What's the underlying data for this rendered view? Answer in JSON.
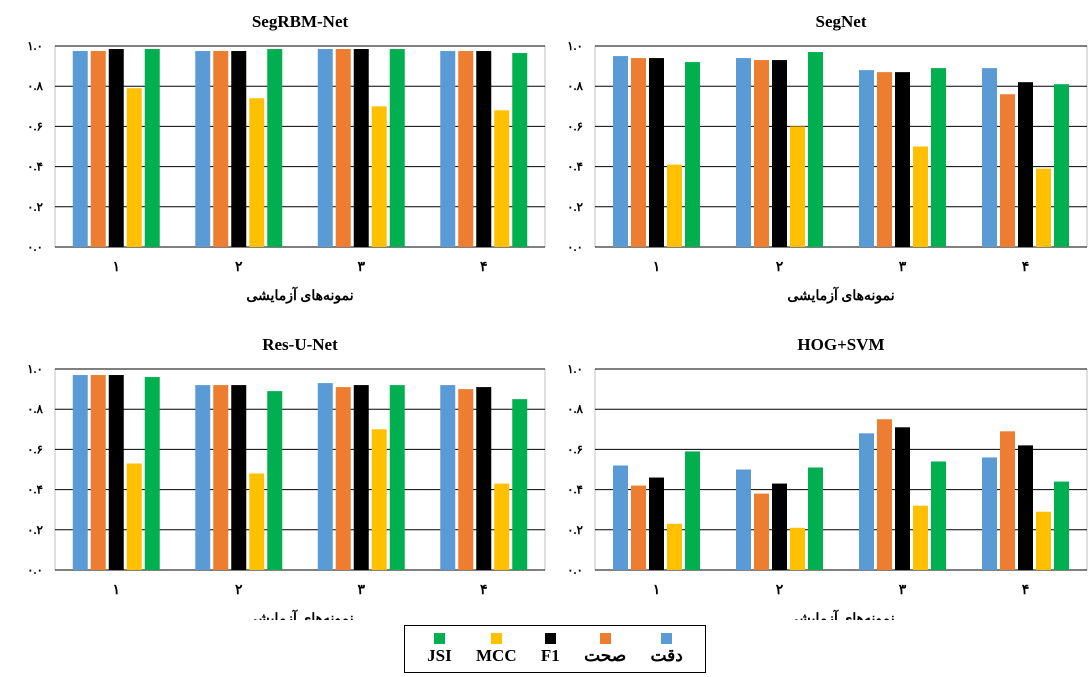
{
  "chart_data": [
    {
      "type": "bar",
      "title": "SegRBM-Net",
      "categories": [
        "۱",
        "۲",
        "۳",
        "۴"
      ],
      "ylim": [
        0,
        1.0
      ],
      "yticks": [
        "۰.۰",
        "۰.۲",
        "۰.۴",
        "۰.۶",
        "۰.۸",
        "۱.۰"
      ],
      "xlabel": "نمونه‌های آزمایشی",
      "series": [
        {
          "name": "دقت",
          "values": [
            0.975,
            0.975,
            0.985,
            0.975
          ]
        },
        {
          "name": "صحت",
          "values": [
            0.975,
            0.975,
            0.985,
            0.975
          ]
        },
        {
          "name": "F1",
          "values": [
            0.985,
            0.975,
            0.985,
            0.975
          ]
        },
        {
          "name": "MCC",
          "values": [
            0.79,
            0.74,
            0.7,
            0.68
          ]
        },
        {
          "name": "JSI",
          "values": [
            0.985,
            0.985,
            0.985,
            0.965
          ]
        }
      ]
    },
    {
      "type": "bar",
      "title": "SegNet",
      "categories": [
        "۱",
        "۲",
        "۳",
        "۴"
      ],
      "ylim": [
        0,
        1.0
      ],
      "yticks": [
        "۰.۰",
        "۰.۲",
        "۰.۴",
        "۰.۶",
        "۰.۸",
        "۱.۰"
      ],
      "xlabel": "نمونه‌های آزمایشی",
      "series": [
        {
          "name": "دقت",
          "values": [
            0.95,
            0.94,
            0.88,
            0.89
          ]
        },
        {
          "name": "صحت",
          "values": [
            0.94,
            0.93,
            0.87,
            0.76
          ]
        },
        {
          "name": "F1",
          "values": [
            0.94,
            0.93,
            0.87,
            0.82
          ]
        },
        {
          "name": "MCC",
          "values": [
            0.41,
            0.6,
            0.5,
            0.39
          ]
        },
        {
          "name": "JSI",
          "values": [
            0.92,
            0.97,
            0.89,
            0.81
          ]
        }
      ]
    },
    {
      "type": "bar",
      "title": "Res-U-Net",
      "categories": [
        "۱",
        "۲",
        "۳",
        "۴"
      ],
      "ylim": [
        0,
        1.0
      ],
      "yticks": [
        "۰.۰",
        "۰.۲",
        "۰.۴",
        "۰.۶",
        "۰.۸",
        "۱.۰"
      ],
      "xlabel": "نمونه‌های آزمایشی",
      "series": [
        {
          "name": "دقت",
          "values": [
            0.97,
            0.92,
            0.93,
            0.92
          ]
        },
        {
          "name": "صحت",
          "values": [
            0.97,
            0.92,
            0.91,
            0.9
          ]
        },
        {
          "name": "F1",
          "values": [
            0.97,
            0.92,
            0.92,
            0.91
          ]
        },
        {
          "name": "MCC",
          "values": [
            0.53,
            0.48,
            0.7,
            0.43
          ]
        },
        {
          "name": "JSI",
          "values": [
            0.96,
            0.89,
            0.92,
            0.85
          ]
        }
      ]
    },
    {
      "type": "bar",
      "title": "HOG+SVM",
      "categories": [
        "۱",
        "۲",
        "۳",
        "۴"
      ],
      "ylim": [
        0,
        1.0
      ],
      "yticks": [
        "۰.۰",
        "۰.۲",
        "۰.۴",
        "۰.۶",
        "۰.۸",
        "۱.۰"
      ],
      "xlabel": "نمونه‌های آزمایشی",
      "series": [
        {
          "name": "دقت",
          "values": [
            0.52,
            0.5,
            0.68,
            0.56
          ]
        },
        {
          "name": "صحت",
          "values": [
            0.42,
            0.38,
            0.75,
            0.69
          ]
        },
        {
          "name": "F1",
          "values": [
            0.46,
            0.43,
            0.71,
            0.62
          ]
        },
        {
          "name": "MCC",
          "values": [
            0.23,
            0.21,
            0.32,
            0.29
          ]
        },
        {
          "name": "JSI",
          "values": [
            0.59,
            0.51,
            0.54,
            0.44
          ]
        }
      ]
    }
  ],
  "colors": [
    "#5B9BD5",
    "#ED7D31",
    "#000000",
    "#FFC000",
    "#00B050"
  ],
  "legend": {
    "items": [
      {
        "label": "دقت",
        "color": "#5B9BD5"
      },
      {
        "label": "صحت",
        "color": "#ED7D31"
      },
      {
        "label": "F1",
        "color": "#000000"
      },
      {
        "label": "MCC",
        "color": "#FFC000"
      },
      {
        "label": "JSI",
        "color": "#00B050"
      }
    ]
  }
}
